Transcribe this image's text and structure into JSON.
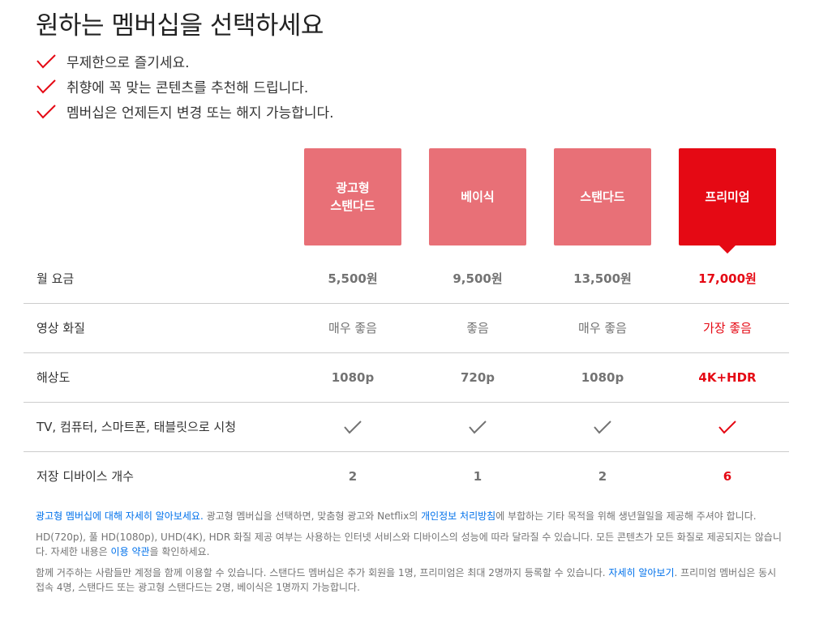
{
  "title": "원하는 멤버십을 선택하세요",
  "benefits": [
    {
      "text": "무제한으로 즐기세요."
    },
    {
      "text": "취향에 꼭 맞는 콘텐츠를 추천해 드립니다."
    },
    {
      "text": "멤버십은 언제든지 변경 또는 해지 가능합니다."
    }
  ],
  "colors": {
    "brand_red": "#e50914",
    "plan_pink": "#e87077",
    "link_blue": "#0071eb"
  },
  "plans": [
    {
      "name": "광고형\n스탠다드",
      "selected": false
    },
    {
      "name": "베이식",
      "selected": false
    },
    {
      "name": "스탠다드",
      "selected": false
    },
    {
      "name": "프리미엄",
      "selected": true
    }
  ],
  "table": {
    "rows": [
      {
        "label": "월 요금",
        "values": [
          "5,500원",
          "9,500원",
          "13,500원",
          "17,000원"
        ],
        "bold": true
      },
      {
        "label": "영상 화질",
        "values": [
          "매우 좋음",
          "좋음",
          "매우 좋음",
          "가장 좋음"
        ],
        "bold": false
      },
      {
        "label": "해상도",
        "values": [
          "1080p",
          "720p",
          "1080p",
          "4K+HDR"
        ],
        "bold": true
      },
      {
        "label": "TV, 컴퓨터, 스마트폰, 태블릿으로 시청",
        "values": [
          "check-icon",
          "check-icon",
          "check-icon",
          "check-icon"
        ],
        "bold": false
      },
      {
        "label": "저장 디바이스 개수",
        "values": [
          "2",
          "1",
          "2",
          "6"
        ],
        "bold": true
      }
    ]
  },
  "notes": {
    "p1_link": "광고형 멤버십에 대해 자세히 알아보세요.",
    "p1_text_a": " 광고형 멤버십을 선택하면, 맞춤형 광고와 Netflix의 ",
    "p1_link2": "개인정보 처리방침",
    "p1_text_b": "에 부합하는 기타 목적을 위해 생년월일을 제공해 주셔야 합니다.",
    "p2_text_a": "HD(720p), 풀 HD(1080p), UHD(4K), HDR 화질 제공 여부는 사용하는 인터넷 서비스와 디바이스의 성능에 따라 달라질 수 있습니다. 모든 콘텐츠가 모든 화질로 제공되지는 않습니다. 자세한 내용은 ",
    "p2_link": "이용 약관",
    "p2_text_b": "을 확인하세요.",
    "p3_text_a": "함께 거주하는 사람들만 계정을 함께 이용할 수 있습니다. 스탠다드 멤버십은 추가 회원을 1명, 프리미엄은 최대 2명까지 등록할 수 있습니다. ",
    "p3_link": "자세히 알아보기",
    "p3_text_b": ". 프리미엄 멤버십은 동시접속 4명, 스탠다드 또는 광고형 스탠다드는 2명, 베이식은 1명까지 가능합니다."
  }
}
